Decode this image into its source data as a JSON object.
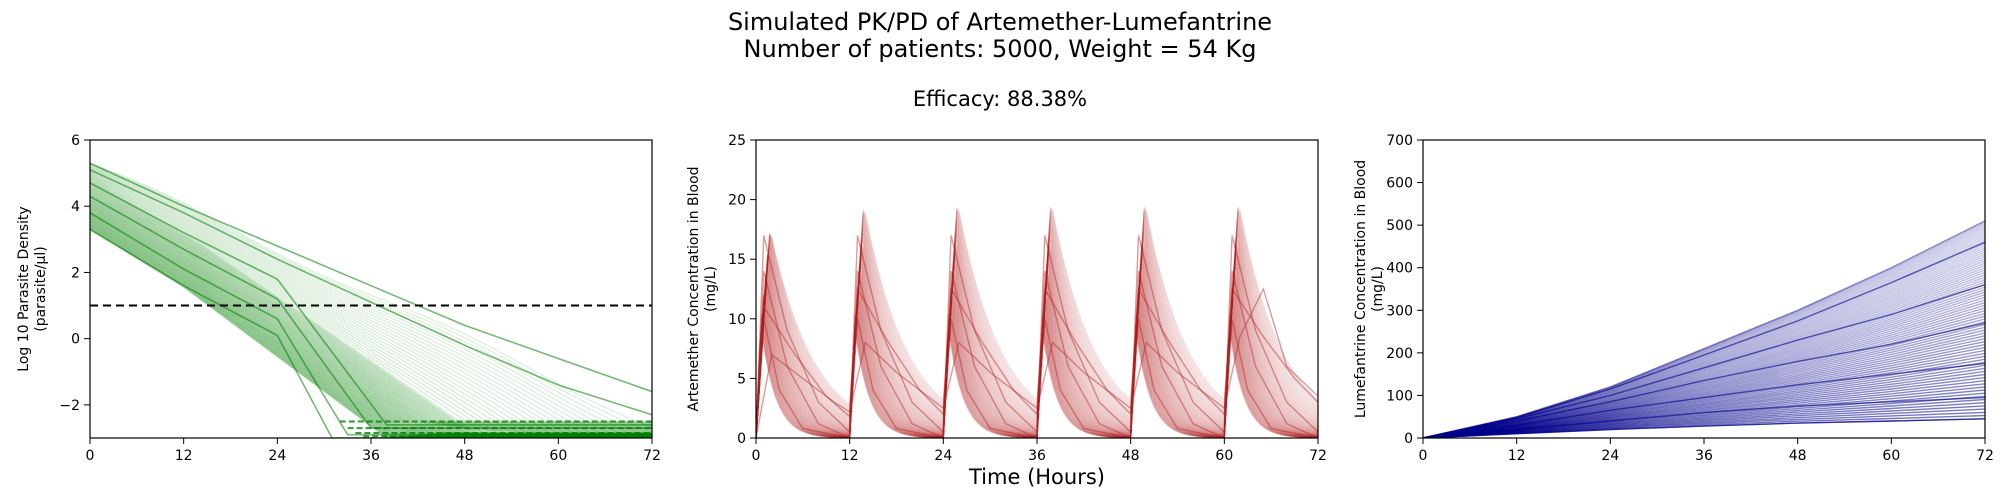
{
  "figure": {
    "title_lines": [
      "Simulated PK/PD of Artemether-Lumefantrine",
      "Number of patients: 5000, Weight = 54 Kg"
    ],
    "subtitle": "Efficacy: 88.38%",
    "shared_xlabel": "Time (Hours)"
  },
  "chart_data": [
    {
      "type": "line",
      "ylabel_lines": [
        "Log 10 Parasite Density",
        "(parasite/μl)"
      ],
      "xlabel": "",
      "xlim": [
        0,
        72
      ],
      "ylim": [
        -3,
        6
      ],
      "xticks": [
        0,
        12,
        24,
        36,
        48,
        60,
        72
      ],
      "yticks": [
        -2,
        0,
        2,
        4,
        6
      ],
      "ytick_labels": [
        "−2",
        "0",
        "2",
        "4",
        "6"
      ],
      "grid": false,
      "series_color": "#008000",
      "reference_line": {
        "y": 1,
        "style": "dashed",
        "color": "#000000"
      },
      "series": [
        {
          "x": [
            0,
            12,
            24,
            31,
            72
          ],
          "y": [
            3.3,
            1.6,
            0.1,
            -3.0,
            -3.0
          ]
        },
        {
          "x": [
            0,
            12,
            24,
            33,
            72
          ],
          "y": [
            3.8,
            2.1,
            0.6,
            -2.9,
            -2.9
          ]
        },
        {
          "x": [
            0,
            12,
            24,
            36,
            72
          ],
          "y": [
            4.3,
            2.7,
            1.2,
            -2.7,
            -2.7
          ]
        },
        {
          "x": [
            0,
            12,
            24,
            38,
            72
          ],
          "y": [
            4.7,
            3.2,
            1.8,
            -2.6,
            -2.6
          ]
        },
        {
          "x": [
            0,
            12,
            24,
            36,
            48,
            60,
            72
          ],
          "y": [
            5.1,
            3.8,
            2.4,
            1.1,
            -0.2,
            -1.4,
            -2.3
          ]
        },
        {
          "x": [
            0,
            12,
            24,
            36,
            48,
            60,
            72
          ],
          "y": [
            5.3,
            4.0,
            2.8,
            1.6,
            0.4,
            -0.6,
            -1.6
          ]
        }
      ]
    },
    {
      "type": "line",
      "ylabel_lines": [
        "Artemether Concentration in Blood",
        "(mg/L)"
      ],
      "xlabel": "Time (Hours)",
      "xlim": [
        0,
        72
      ],
      "ylim": [
        0,
        25
      ],
      "xticks": [
        0,
        12,
        24,
        36,
        48,
        60,
        72
      ],
      "yticks": [
        0,
        5,
        10,
        15,
        20,
        25
      ],
      "grid": false,
      "series_color": "#b22222",
      "dose_times": [
        0,
        12,
        24,
        36,
        48,
        60
      ],
      "peak_max": 17.5,
      "series": [
        {
          "x": [
            0,
            1,
            4,
            8,
            12,
            13,
            16,
            20,
            24,
            25,
            28,
            32,
            36,
            37,
            40,
            44,
            48,
            49,
            52,
            56,
            60,
            61,
            64,
            68,
            72
          ],
          "y": [
            0,
            17.0,
            9.0,
            3.0,
            0.5,
            17.0,
            9.0,
            3.0,
            0.5,
            17.0,
            9.0,
            3.0,
            0.5,
            17.0,
            9.0,
            3.0,
            0.5,
            17.0,
            9.0,
            3.0,
            0.5,
            17.0,
            9.0,
            3.0,
            0.5
          ]
        },
        {
          "x": [
            0,
            1,
            4,
            8,
            12,
            13,
            16,
            20,
            24,
            25,
            28,
            32,
            36,
            37,
            40,
            44,
            48,
            49,
            52,
            56,
            60,
            61,
            64,
            68,
            72
          ],
          "y": [
            0,
            14.0,
            6.0,
            1.2,
            0,
            14.0,
            6.0,
            1.2,
            0,
            14.0,
            6.0,
            1.2,
            0,
            14.0,
            6.0,
            1.2,
            0,
            14.0,
            6.0,
            1.2,
            0,
            14.0,
            6.0,
            1.2,
            0
          ]
        },
        {
          "x": [
            0,
            1,
            5,
            9,
            12,
            13,
            17,
            21,
            24,
            25,
            29,
            33,
            36,
            37,
            41,
            45,
            48,
            49,
            53,
            57,
            60,
            61,
            65,
            69,
            72
          ],
          "y": [
            0,
            11.0,
            7.0,
            3.5,
            1.8,
            12.5,
            8.0,
            4.0,
            2.0,
            12.5,
            8.0,
            4.0,
            2.0,
            12.5,
            8.0,
            4.0,
            2.0,
            12.5,
            8.0,
            4.0,
            2.0,
            12.5,
            8.5,
            5.0,
            3.0
          ]
        },
        {
          "x": [
            0,
            1,
            3,
            6,
            12,
            13,
            15,
            18,
            24,
            25,
            27,
            30,
            36,
            37,
            39,
            42,
            48,
            49,
            51,
            54,
            60,
            61,
            63,
            66,
            72
          ],
          "y": [
            0,
            10.0,
            4.0,
            0.8,
            0,
            10.0,
            4.0,
            0.8,
            0,
            10.0,
            4.0,
            0.8,
            0,
            10.0,
            4.0,
            0.8,
            0,
            10.0,
            4.0,
            0.8,
            0,
            10.0,
            4.0,
            0.8,
            0
          ]
        },
        {
          "x": [
            0,
            2,
            6,
            10,
            12,
            14,
            18,
            22,
            24,
            26,
            30,
            34,
            36,
            38,
            42,
            46,
            48,
            50,
            54,
            58,
            60,
            62,
            65,
            68,
            72
          ],
          "y": [
            0,
            7.0,
            5.0,
            3.0,
            2.2,
            8.0,
            5.5,
            3.5,
            2.5,
            8.0,
            5.5,
            3.5,
            2.5,
            8.0,
            5.5,
            3.5,
            2.5,
            8.0,
            5.5,
            3.5,
            2.5,
            8.5,
            12.5,
            6.0,
            3.5
          ]
        }
      ]
    },
    {
      "type": "line",
      "ylabel_lines": [
        "Lumefantrine Concentration in Blood",
        "(mg/L)"
      ],
      "xlabel": "",
      "xlim": [
        0,
        72
      ],
      "ylim": [
        0,
        700
      ],
      "xticks": [
        0,
        12,
        24,
        36,
        48,
        60,
        72
      ],
      "yticks": [
        0,
        100,
        200,
        300,
        400,
        500,
        600,
        700
      ],
      "grid": false,
      "series_color": "#00008b",
      "series": [
        {
          "x": [
            0,
            12,
            24,
            36,
            48,
            60,
            72
          ],
          "y": [
            0,
            50,
            120,
            210,
            300,
            400,
            510
          ]
        },
        {
          "x": [
            0,
            12,
            24,
            36,
            48,
            60,
            72
          ],
          "y": [
            0,
            48,
            115,
            195,
            275,
            365,
            460
          ]
        },
        {
          "x": [
            0,
            12,
            24,
            36,
            48,
            60,
            72
          ],
          "y": [
            0,
            45,
            100,
            165,
            230,
            290,
            360
          ]
        },
        {
          "x": [
            0,
            12,
            24,
            36,
            48,
            60,
            72
          ],
          "y": [
            0,
            40,
            85,
            135,
            180,
            220,
            270
          ]
        },
        {
          "x": [
            0,
            12,
            24,
            36,
            48,
            60,
            72
          ],
          "y": [
            0,
            30,
            65,
            95,
            125,
            150,
            175
          ]
        },
        {
          "x": [
            0,
            12,
            24,
            36,
            48,
            60,
            72
          ],
          "y": [
            0,
            20,
            40,
            60,
            75,
            85,
            95
          ]
        },
        {
          "x": [
            0,
            12,
            24,
            36,
            48,
            60,
            72
          ],
          "y": [
            0,
            10,
            20,
            28,
            35,
            40,
            45
          ]
        }
      ]
    }
  ]
}
